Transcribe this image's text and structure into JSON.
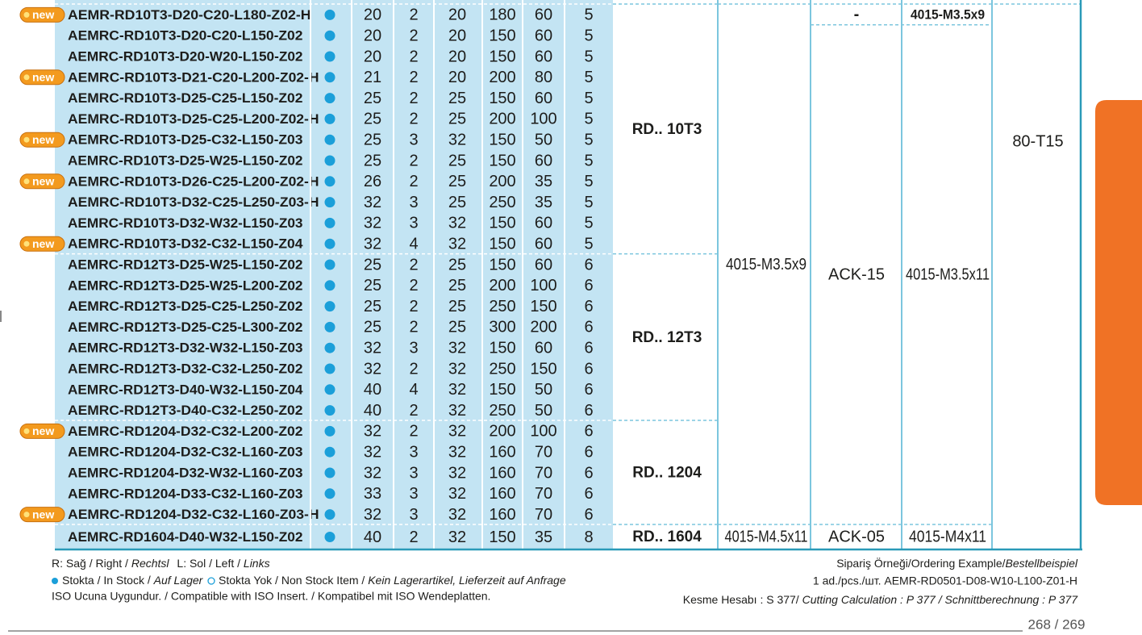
{
  "table": {
    "groups": [
      {
        "label": "RD.. 10T3",
        "rows": [
          {
            "badge": "new",
            "code": "AEMR-RD10T3-D20-C20-L180-Z02-H",
            "values": [
              "20",
              "2",
              "20",
              "180",
              "60",
              "5"
            ]
          },
          {
            "code": "AEMRC-RD10T3-D20-C20-L150-Z02",
            "values": [
              "20",
              "2",
              "20",
              "150",
              "60",
              "5"
            ]
          },
          {
            "code": "AEMRC-RD10T3-D20-W20-L150-Z02",
            "values": [
              "20",
              "2",
              "20",
              "150",
              "60",
              "5"
            ]
          },
          {
            "badge": "new",
            "code": "AEMRC-RD10T3-D21-C20-L200-Z02-H",
            "values": [
              "21",
              "2",
              "20",
              "200",
              "80",
              "5"
            ]
          },
          {
            "code": "AEMRC-RD10T3-D25-C25-L150-Z02",
            "values": [
              "25",
              "2",
              "25",
              "150",
              "60",
              "5"
            ]
          },
          {
            "code": "AEMRC-RD10T3-D25-C25-L200-Z02-H",
            "values": [
              "25",
              "2",
              "25",
              "200",
              "100",
              "5"
            ]
          },
          {
            "badge": "new",
            "code": "AEMRC-RD10T3-D25-C32-L150-Z03",
            "values": [
              "25",
              "3",
              "32",
              "150",
              "50",
              "5"
            ]
          },
          {
            "code": "AEMRC-RD10T3-D25-W25-L150-Z02",
            "values": [
              "25",
              "2",
              "25",
              "150",
              "60",
              "5"
            ]
          },
          {
            "badge": "new",
            "code": "AEMRC-RD10T3-D26-C25-L200-Z02-H",
            "values": [
              "26",
              "2",
              "25",
              "200",
              "35",
              "5"
            ]
          },
          {
            "code": "AEMRC-RD10T3-D32-C25-L250-Z03-H",
            "values": [
              "32",
              "3",
              "25",
              "250",
              "35",
              "5"
            ]
          },
          {
            "code": "AEMRC-RD10T3-D32-W32-L150-Z03",
            "values": [
              "32",
              "3",
              "32",
              "150",
              "60",
              "5"
            ]
          },
          {
            "badge": "new",
            "code": "AEMRC-RD10T3-D32-C32-L150-Z04",
            "values": [
              "32",
              "4",
              "32",
              "150",
              "60",
              "5"
            ]
          }
        ]
      },
      {
        "label": "RD.. 12T3",
        "rows": [
          {
            "code": "AEMRC-RD12T3-D25-W25-L150-Z02",
            "values": [
              "25",
              "2",
              "25",
              "150",
              "60",
              "6"
            ]
          },
          {
            "code": "AEMRC-RD12T3-D25-W25-L200-Z02",
            "values": [
              "25",
              "2",
              "25",
              "200",
              "100",
              "6"
            ]
          },
          {
            "code": "AEMRC-RD12T3-D25-C25-L250-Z02",
            "values": [
              "25",
              "2",
              "25",
              "250",
              "150",
              "6"
            ]
          },
          {
            "code": "AEMRC-RD12T3-D25-C25-L300-Z02",
            "values": [
              "25",
              "2",
              "25",
              "300",
              "200",
              "6"
            ]
          },
          {
            "code": "AEMRC-RD12T3-D32-W32-L150-Z03",
            "values": [
              "32",
              "3",
              "32",
              "150",
              "60",
              "6"
            ]
          },
          {
            "code": "AEMRC-RD12T3-D32-C32-L250-Z02",
            "values": [
              "32",
              "2",
              "32",
              "250",
              "150",
              "6"
            ]
          },
          {
            "code": "AEMRC-RD12T3-D40-W32-L150-Z04",
            "values": [
              "40",
              "4",
              "32",
              "150",
              "50",
              "6"
            ]
          },
          {
            "code": "AEMRC-RD12T3-D40-C32-L250-Z02",
            "values": [
              "40",
              "2",
              "32",
              "250",
              "50",
              "6"
            ]
          }
        ]
      },
      {
        "label": "RD.. 1204",
        "rows": [
          {
            "badge": "new",
            "code": "AEMRC-RD1204-D32-C32-L200-Z02",
            "values": [
              "32",
              "2",
              "32",
              "200",
              "100",
              "6"
            ]
          },
          {
            "code": "AEMRC-RD1204-D32-C32-L160-Z03",
            "values": [
              "32",
              "3",
              "32",
              "160",
              "70",
              "6"
            ]
          },
          {
            "code": "AEMRC-RD1204-D32-W32-L160-Z03",
            "values": [
              "32",
              "3",
              "32",
              "160",
              "70",
              "6"
            ]
          },
          {
            "code": "AEMRC-RD1204-D33-C32-L160-Z03",
            "values": [
              "33",
              "3",
              "32",
              "160",
              "70",
              "6"
            ]
          },
          {
            "badge": "new",
            "code": "AEMRC-RD1204-D32-C32-L160-Z03-H",
            "values": [
              "32",
              "3",
              "32",
              "160",
              "70",
              "6"
            ]
          }
        ]
      },
      {
        "label": "RD.. 1604",
        "rows": [
          {
            "code": "AEMRC-RD1604-D40-W32-L150-Z02",
            "values": [
              "40",
              "2",
              "32",
              "150",
              "35",
              "8"
            ]
          }
        ]
      }
    ],
    "screw": [
      "4015-M3.5x9",
      "4015-M4.5x11"
    ],
    "wrench_top": "-",
    "wrench": [
      "ACK-15",
      "ACK-05"
    ],
    "screw2_top": "4015-M3.5x9",
    "screw2": [
      "4015-M3.5x11",
      "4015-M4x11"
    ],
    "key": "80-T15"
  },
  "footer": {
    "right_tr": "R: Sağ / Right /",
    "right_de": "Rechtsl",
    "left_tr": "L: Sol / Left /",
    "left_de": "Links",
    "stock": "Stokta / In Stock",
    "stock_de": "Auf Lager",
    "nonstock": "Stokta Yok / Non Stock Item /",
    "nonstock_de": "Kein Lagerartikel, Lieferzeit auf Anfrage",
    "iso": "ISO Ucuna Uygundur. / Compatible with ISO Insert. / Kompatibel mit ISO Wendeplatten.",
    "ordering": "Sipariş Örneği/Ordering Example/",
    "ordering_de": "Bestellbeispiel",
    "example": "1 ad./pcs./шт.  AEMR-RD0501-D08-W10-L100-Z01-H",
    "calc": "Kesme Hesabı : S 377/",
    "calc_en": "Cutting Calculation : P 377",
    "calc_de": "/ Schnittberechnung : P 377",
    "page": "268 / 269"
  }
}
